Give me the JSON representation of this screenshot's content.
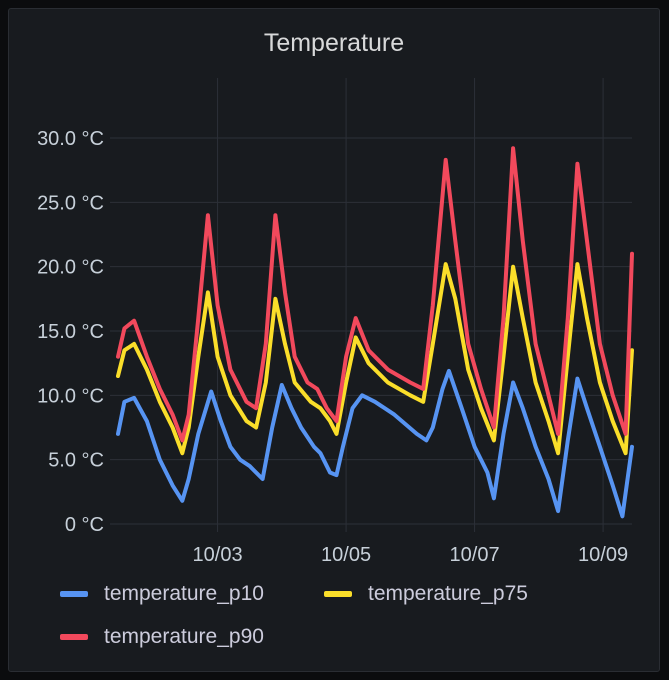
{
  "panel": {
    "title": "Temperature"
  },
  "chart_data": {
    "type": "line",
    "title": "Temperature",
    "x_ticks": [
      {
        "label": "10/03",
        "t": 1.0
      },
      {
        "label": "10/05",
        "t": 3.0
      },
      {
        "label": "10/07",
        "t": 5.0
      },
      {
        "label": "10/09",
        "t": 7.0
      }
    ],
    "xlim": [
      -0.55,
      7.45
    ],
    "y_ticks": [
      "0 °C",
      "5.0 °C",
      "10.0 °C",
      "15.0 °C",
      "20.0 °C",
      "25.0 °C",
      "30.0 °C"
    ],
    "ylim": [
      0,
      30
    ],
    "grid": true,
    "legend_position": "bottom",
    "series": [
      {
        "name": "temperature_p10",
        "color": "#5794f2",
        "points": [
          [
            -0.55,
            7.0
          ],
          [
            -0.45,
            9.5
          ],
          [
            -0.3,
            9.8
          ],
          [
            -0.1,
            8.0
          ],
          [
            0.1,
            5.0
          ],
          [
            0.3,
            3.0
          ],
          [
            0.45,
            1.8
          ],
          [
            0.55,
            3.5
          ],
          [
            0.7,
            7.0
          ],
          [
            0.9,
            10.3
          ],
          [
            1.05,
            8.0
          ],
          [
            1.2,
            6.0
          ],
          [
            1.35,
            5.0
          ],
          [
            1.5,
            4.5
          ],
          [
            1.7,
            3.5
          ],
          [
            1.85,
            7.5
          ],
          [
            2.0,
            10.8
          ],
          [
            2.15,
            9.0
          ],
          [
            2.3,
            7.5
          ],
          [
            2.5,
            6.0
          ],
          [
            2.6,
            5.5
          ],
          [
            2.75,
            4.0
          ],
          [
            2.85,
            3.8
          ],
          [
            2.95,
            6.0
          ],
          [
            3.1,
            9.0
          ],
          [
            3.25,
            10.0
          ],
          [
            3.45,
            9.5
          ],
          [
            3.75,
            8.5
          ],
          [
            4.1,
            7.0
          ],
          [
            4.25,
            6.5
          ],
          [
            4.35,
            7.5
          ],
          [
            4.5,
            10.5
          ],
          [
            4.6,
            11.9
          ],
          [
            4.8,
            9.0
          ],
          [
            5.0,
            6.0
          ],
          [
            5.2,
            4.0
          ],
          [
            5.3,
            2.0
          ],
          [
            5.45,
            7.0
          ],
          [
            5.6,
            11.0
          ],
          [
            5.75,
            9.0
          ],
          [
            5.95,
            6.0
          ],
          [
            6.15,
            3.5
          ],
          [
            6.3,
            1.0
          ],
          [
            6.45,
            6.5
          ],
          [
            6.6,
            11.3
          ],
          [
            6.75,
            9.0
          ],
          [
            6.95,
            6.0
          ],
          [
            7.15,
            3.0
          ],
          [
            7.3,
            0.6
          ],
          [
            7.45,
            6.0
          ]
        ]
      },
      {
        "name": "temperature_p75",
        "color": "#fade2a",
        "points": [
          [
            -0.55,
            11.5
          ],
          [
            -0.45,
            13.5
          ],
          [
            -0.3,
            14.0
          ],
          [
            -0.1,
            12.0
          ],
          [
            0.1,
            9.5
          ],
          [
            0.3,
            7.5
          ],
          [
            0.45,
            5.5
          ],
          [
            0.55,
            7.5
          ],
          [
            0.7,
            13.0
          ],
          [
            0.85,
            18.0
          ],
          [
            1.0,
            13.0
          ],
          [
            1.2,
            10.0
          ],
          [
            1.45,
            8.0
          ],
          [
            1.6,
            7.5
          ],
          [
            1.75,
            11.0
          ],
          [
            1.9,
            17.5
          ],
          [
            2.05,
            14.0
          ],
          [
            2.2,
            11.0
          ],
          [
            2.45,
            9.5
          ],
          [
            2.6,
            9.0
          ],
          [
            2.75,
            8.0
          ],
          [
            2.85,
            7.0
          ],
          [
            3.0,
            11.0
          ],
          [
            3.15,
            14.5
          ],
          [
            3.35,
            12.5
          ],
          [
            3.65,
            11.0
          ],
          [
            4.0,
            10.0
          ],
          [
            4.2,
            9.5
          ],
          [
            4.35,
            14.0
          ],
          [
            4.55,
            20.2
          ],
          [
            4.7,
            17.5
          ],
          [
            4.9,
            12.0
          ],
          [
            5.1,
            9.0
          ],
          [
            5.3,
            6.5
          ],
          [
            5.45,
            13.0
          ],
          [
            5.6,
            20.0
          ],
          [
            5.75,
            16.0
          ],
          [
            5.95,
            11.0
          ],
          [
            6.15,
            8.0
          ],
          [
            6.3,
            5.5
          ],
          [
            6.45,
            13.0
          ],
          [
            6.6,
            20.2
          ],
          [
            6.75,
            16.0
          ],
          [
            6.95,
            11.0
          ],
          [
            7.15,
            8.0
          ],
          [
            7.35,
            5.5
          ],
          [
            7.45,
            13.5
          ]
        ]
      },
      {
        "name": "temperature_p90",
        "color": "#f2495c",
        "points": [
          [
            -0.55,
            13.0
          ],
          [
            -0.45,
            15.2
          ],
          [
            -0.3,
            15.8
          ],
          [
            -0.1,
            13.0
          ],
          [
            0.1,
            10.5
          ],
          [
            0.3,
            8.5
          ],
          [
            0.45,
            6.5
          ],
          [
            0.55,
            8.5
          ],
          [
            0.7,
            16.0
          ],
          [
            0.85,
            24.0
          ],
          [
            1.0,
            17.0
          ],
          [
            1.2,
            12.0
          ],
          [
            1.45,
            9.5
          ],
          [
            1.6,
            9.0
          ],
          [
            1.75,
            14.0
          ],
          [
            1.9,
            24.0
          ],
          [
            2.05,
            18.0
          ],
          [
            2.2,
            13.0
          ],
          [
            2.4,
            11.0
          ],
          [
            2.55,
            10.5
          ],
          [
            2.7,
            9.0
          ],
          [
            2.85,
            8.0
          ],
          [
            3.0,
            13.0
          ],
          [
            3.15,
            16.0
          ],
          [
            3.35,
            13.5
          ],
          [
            3.65,
            12.0
          ],
          [
            4.0,
            11.0
          ],
          [
            4.2,
            10.5
          ],
          [
            4.35,
            17.0
          ],
          [
            4.55,
            28.3
          ],
          [
            4.7,
            22.0
          ],
          [
            4.9,
            14.0
          ],
          [
            5.1,
            10.5
          ],
          [
            5.3,
            7.5
          ],
          [
            5.45,
            16.0
          ],
          [
            5.6,
            29.2
          ],
          [
            5.75,
            22.0
          ],
          [
            5.95,
            14.0
          ],
          [
            6.15,
            10.0
          ],
          [
            6.3,
            7.0
          ],
          [
            6.45,
            16.0
          ],
          [
            6.6,
            28.0
          ],
          [
            6.75,
            22.0
          ],
          [
            6.95,
            14.0
          ],
          [
            7.15,
            10.0
          ],
          [
            7.35,
            7.0
          ],
          [
            7.45,
            21.0
          ]
        ]
      }
    ]
  }
}
